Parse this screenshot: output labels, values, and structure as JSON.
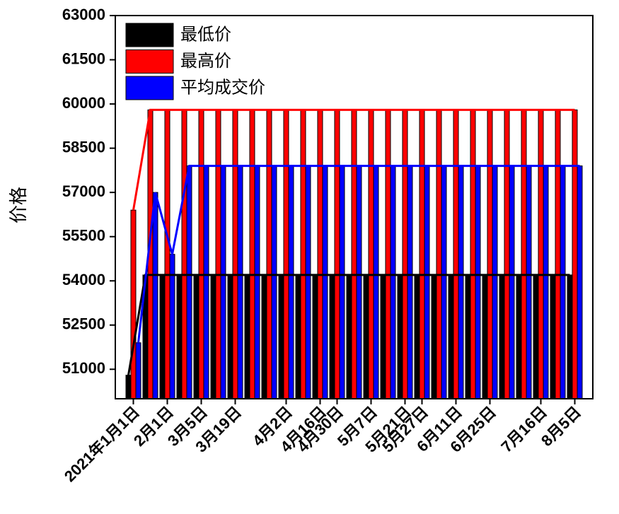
{
  "chart_data": {
    "type": "bar",
    "y_label": "价格",
    "categories": [
      "2021年1月1日",
      null,
      "2月1日",
      null,
      "3月5日",
      null,
      "3月19日",
      null,
      null,
      "4月2日",
      null,
      "4月16日",
      "4月30日",
      null,
      "5月7日",
      null,
      "5月21日",
      "5月27日",
      null,
      "6月11日",
      null,
      "6月25日",
      null,
      null,
      "7月16日",
      null,
      "8月5日"
    ],
    "series": [
      {
        "name": "最低价",
        "color": "#000000",
        "values": [
          50800,
          54200,
          54200,
          54200,
          54200,
          54200,
          54200,
          54200,
          54200,
          54200,
          54200,
          54200,
          54200,
          54200,
          54200,
          54200,
          54200,
          54200,
          54200,
          54200,
          54200,
          54200,
          54200,
          54200,
          54200,
          54200,
          54200
        ]
      },
      {
        "name": "最高价",
        "color": "#ff0000",
        "values": [
          56400,
          59800,
          59800,
          59800,
          59800,
          59800,
          59800,
          59800,
          59800,
          59800,
          59800,
          59800,
          59800,
          59800,
          59800,
          59800,
          59800,
          59800,
          59800,
          59800,
          59800,
          59800,
          59800,
          59800,
          59800,
          59800,
          59800
        ]
      },
      {
        "name": "平均成交价",
        "color": "#0000ff",
        "values": [
          51900,
          57000,
          54900,
          57900,
          57900,
          57900,
          57900,
          57900,
          57900,
          57900,
          57900,
          57900,
          57900,
          57900,
          57900,
          57900,
          57900,
          57900,
          57900,
          57900,
          57900,
          57900,
          57900,
          57900,
          57900,
          57900,
          57900
        ]
      }
    ],
    "ylim": [
      50000,
      63000
    ],
    "yticks": [
      51000,
      52500,
      54000,
      55500,
      57000,
      58500,
      60000,
      61500,
      63000
    ],
    "legend": "upper left"
  }
}
